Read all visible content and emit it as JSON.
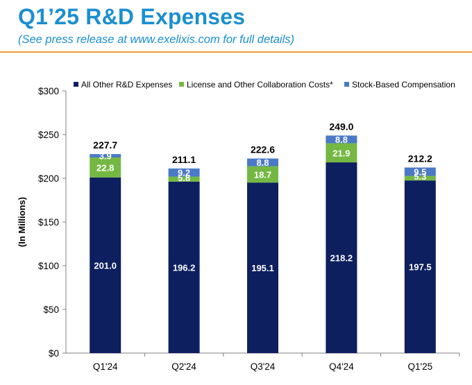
{
  "header": {
    "title": "Q1’25 R&D Expenses",
    "subtitle": "(See press release at www.exelixis.com for full details)"
  },
  "colors": {
    "accent": "#1b8fd0",
    "rule": "#f39a36",
    "all_other": "#0d1f5e",
    "license": "#74b843",
    "stock": "#4a79c7"
  },
  "chart_data": {
    "type": "bar",
    "stacked": true,
    "title": "",
    "xlabel": "",
    "ylabel": "(In Millions)",
    "ylim": [
      0,
      300
    ],
    "yticks": [
      0,
      50,
      100,
      150,
      200,
      250,
      300
    ],
    "ytick_labels": [
      "$0",
      "$50",
      "$100",
      "$150",
      "$200",
      "$250",
      "$300"
    ],
    "categories": [
      "Q1'24",
      "Q2'24",
      "Q3'24",
      "Q4'24",
      "Q1'25"
    ],
    "series": [
      {
        "name": "All Other R&D Expenses",
        "color": "#0d1f5e",
        "values": [
          201.0,
          196.2,
          195.1,
          218.2,
          197.5
        ],
        "labels": [
          "201.0",
          "196.2",
          "195.1",
          "218.2",
          "197.5"
        ]
      },
      {
        "name": "License and Other Collaboration Costs*",
        "color": "#74b843",
        "values": [
          22.8,
          5.8,
          18.7,
          21.9,
          5.3
        ],
        "labels": [
          "22.8",
          "5.8",
          "18.7",
          "21.9",
          "5.3"
        ]
      },
      {
        "name": "Stock-Based Compensation",
        "color": "#4a79c7",
        "values": [
          3.9,
          9.2,
          8.8,
          8.8,
          9.5
        ],
        "labels": [
          "3.9",
          "9.2",
          "8.8",
          "8.8",
          "9.5"
        ]
      }
    ],
    "totals": [
      227.7,
      211.1,
      222.6,
      249.0,
      212.2
    ],
    "total_labels": [
      "227.7",
      "211.1",
      "222.6",
      "249.0",
      "212.2"
    ],
    "legend_position": "top"
  }
}
